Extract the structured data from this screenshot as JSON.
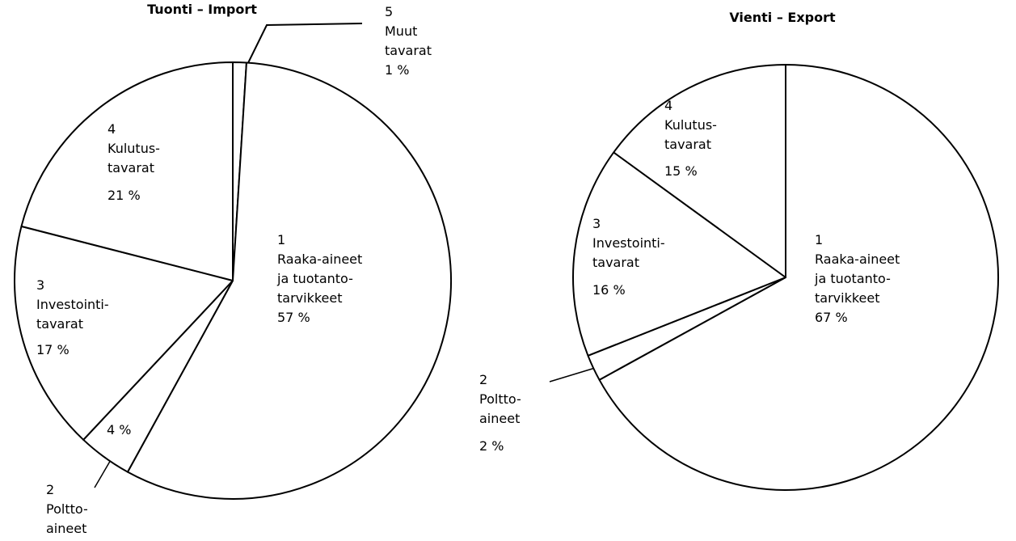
{
  "chart_data": [
    {
      "type": "pie",
      "title": "Tuonti – Import",
      "categories": [
        "5\nMuut\ntavarat",
        "1\nRaaka-aineet\nja tuotanto-\ntarvikkeet",
        "2\nPoltto-\naineet",
        "3\nInvestointi-\ntavarat",
        "4\nKulutus-\ntavarat"
      ],
      "values": [
        1,
        57,
        4,
        17,
        21
      ],
      "value_labels": [
        "1 %",
        "57 %",
        "4 %",
        "17 %",
        "21 %"
      ],
      "color": "#ffffff"
    },
    {
      "type": "pie",
      "title": "Vienti – Export",
      "categories": [
        "1\nRaaka-aineet\nja tuotanto-\ntarvikkeet",
        "2\nPoltto-\naineet",
        "3\nInvestointi-\ntavarat",
        "4\nKulutus-\ntavarat"
      ],
      "values": [
        67,
        2,
        16,
        15
      ],
      "value_labels": [
        "67 %",
        "2 %",
        "16 %",
        "15 %"
      ],
      "color": "#ffffff"
    }
  ]
}
